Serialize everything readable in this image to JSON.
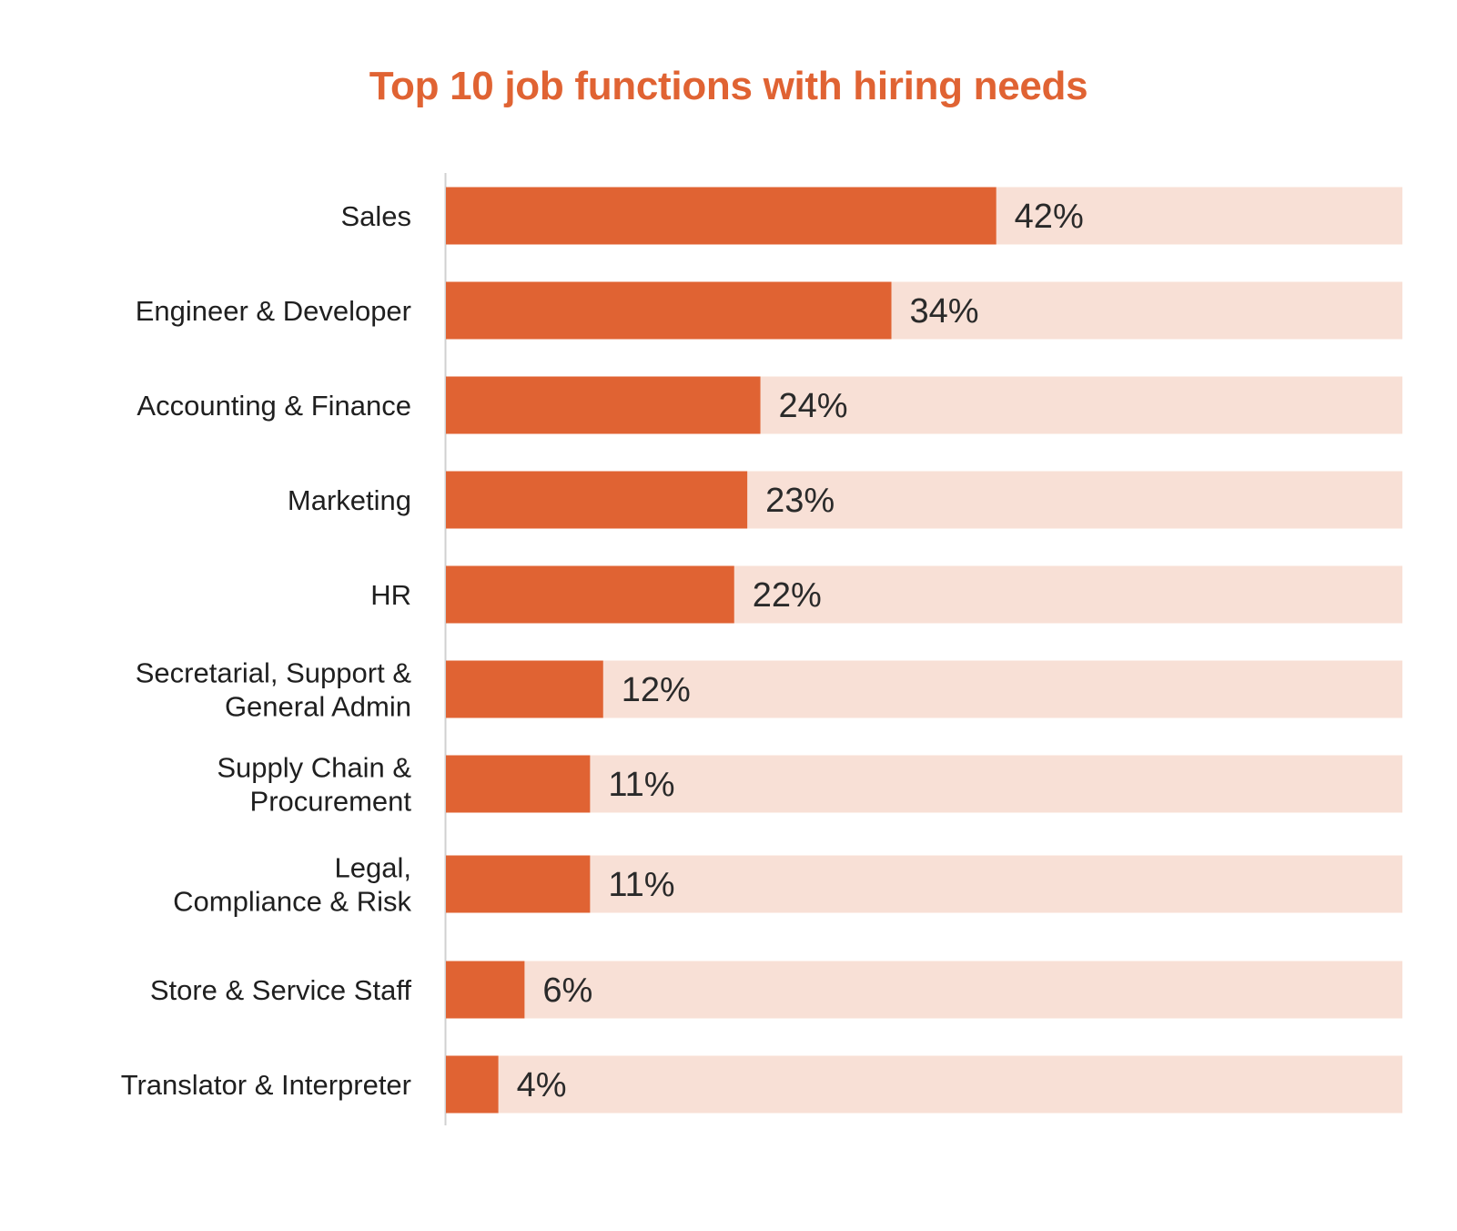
{
  "chart_data": {
    "type": "bar",
    "orientation": "horizontal",
    "title": "Top 10 job functions with hiring needs",
    "categories": [
      [
        "Sales"
      ],
      [
        "Engineer & Developer"
      ],
      [
        "Accounting & Finance"
      ],
      [
        "Marketing"
      ],
      [
        "HR"
      ],
      [
        "Secretarial, Support &",
        "General Admin"
      ],
      [
        "Supply Chain &",
        "Procurement"
      ],
      [
        "Legal,",
        "Compliance & Risk"
      ],
      [
        "Store & Service Staff"
      ],
      [
        "Translator & Interpreter"
      ]
    ],
    "values": [
      42,
      34,
      24,
      23,
      22,
      12,
      11,
      11,
      6,
      4
    ],
    "value_labels": [
      "42%",
      "34%",
      "24%",
      "23%",
      "22%",
      "12%",
      "11%",
      "11%",
      "6%",
      "4%"
    ],
    "xlim": [
      0,
      73
    ],
    "grid": false,
    "legend": "none",
    "colors": {
      "bar": "#e06333",
      "track": "#f8e0d6",
      "axis": "#d0d0d0",
      "title": "#e06333"
    }
  }
}
